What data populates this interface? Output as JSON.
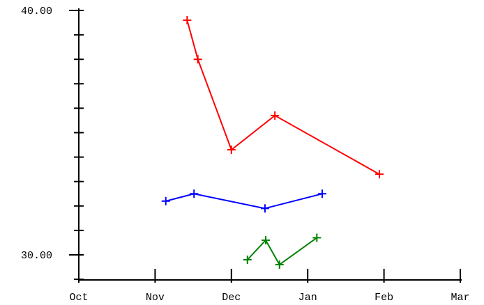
{
  "chart_data": {
    "type": "line",
    "title": "",
    "xlabel": "",
    "ylabel": "",
    "x_tick_labels": [
      "Oct",
      "Nov",
      "Dec",
      "Jan",
      "Feb",
      "Mar"
    ],
    "y_tick_labels": [
      "30.00",
      "40.00"
    ],
    "xlim": [
      0,
      5
    ],
    "ylim": [
      29.0,
      40.3
    ],
    "grid": false,
    "legend": "none",
    "series": [
      {
        "color": "#ff0000",
        "marker": "plus",
        "points": [
          {
            "x": 1.42,
            "y": 39.6
          },
          {
            "x": 1.56,
            "y": 38.0
          },
          {
            "x": 2.0,
            "y": 34.3
          },
          {
            "x": 2.57,
            "y": 35.7
          },
          {
            "x": 3.94,
            "y": 33.3
          }
        ]
      },
      {
        "color": "#0000ff",
        "marker": "plus",
        "points": [
          {
            "x": 1.14,
            "y": 32.2
          },
          {
            "x": 1.51,
            "y": 32.5
          },
          {
            "x": 2.44,
            "y": 31.9
          },
          {
            "x": 3.19,
            "y": 32.5
          }
        ]
      },
      {
        "color": "#008000",
        "marker": "plus",
        "points": [
          {
            "x": 2.21,
            "y": 29.8
          },
          {
            "x": 2.45,
            "y": 30.6
          },
          {
            "x": 2.63,
            "y": 29.6
          },
          {
            "x": 3.12,
            "y": 30.7
          }
        ]
      }
    ]
  }
}
